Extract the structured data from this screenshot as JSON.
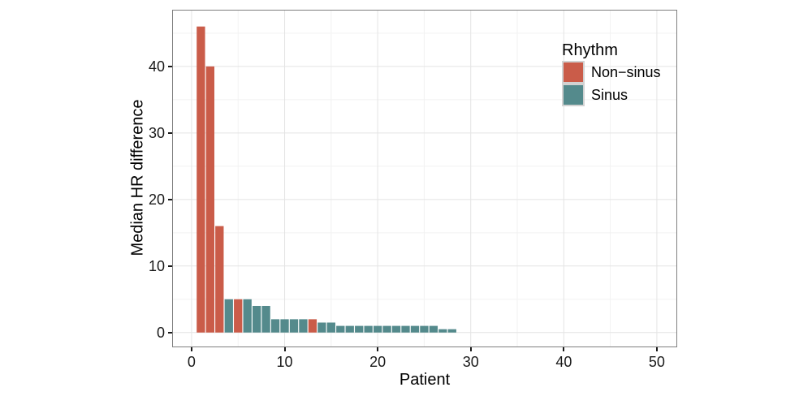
{
  "chart_data": {
    "type": "bar",
    "title": "",
    "xlabel": "Patient",
    "ylabel": "Median HR difference",
    "xlim": [
      -2,
      52.1
    ],
    "ylim": [
      -2.1,
      48.4
    ],
    "x_ticks": [
      0,
      10,
      20,
      30,
      40,
      50
    ],
    "y_ticks": [
      0,
      10,
      20,
      30,
      40
    ],
    "x_minor_ticks": [
      5,
      15,
      25,
      35,
      45
    ],
    "y_minor_ticks": [
      5,
      15,
      25,
      35,
      45
    ],
    "grid": "major and minor, light gray on white panel",
    "legend_position": "inside top-right",
    "bar_width_fraction": 0.9,
    "series": [
      {
        "name": "Non−sinus",
        "color": "#ca5c49"
      },
      {
        "name": "Sinus",
        "color": "#548a8c"
      }
    ],
    "bars": [
      {
        "patient": 1,
        "value": 46,
        "rhythm": "Non−sinus"
      },
      {
        "patient": 2,
        "value": 40,
        "rhythm": "Non−sinus"
      },
      {
        "patient": 3,
        "value": 16,
        "rhythm": "Non−sinus"
      },
      {
        "patient": 4,
        "value": 5,
        "rhythm": "Sinus"
      },
      {
        "patient": 5,
        "value": 5,
        "rhythm": "Non−sinus"
      },
      {
        "patient": 6,
        "value": 5,
        "rhythm": "Sinus"
      },
      {
        "patient": 7,
        "value": 4,
        "rhythm": "Sinus"
      },
      {
        "patient": 8,
        "value": 4,
        "rhythm": "Sinus"
      },
      {
        "patient": 9,
        "value": 2,
        "rhythm": "Sinus"
      },
      {
        "patient": 10,
        "value": 2,
        "rhythm": "Sinus"
      },
      {
        "patient": 11,
        "value": 2,
        "rhythm": "Sinus"
      },
      {
        "patient": 12,
        "value": 2,
        "rhythm": "Sinus"
      },
      {
        "patient": 13,
        "value": 2,
        "rhythm": "Non−sinus"
      },
      {
        "patient": 14,
        "value": 1.5,
        "rhythm": "Sinus"
      },
      {
        "patient": 15,
        "value": 1.5,
        "rhythm": "Sinus"
      },
      {
        "patient": 16,
        "value": 1,
        "rhythm": "Sinus"
      },
      {
        "patient": 17,
        "value": 1,
        "rhythm": "Sinus"
      },
      {
        "patient": 18,
        "value": 1,
        "rhythm": "Sinus"
      },
      {
        "patient": 19,
        "value": 1,
        "rhythm": "Sinus"
      },
      {
        "patient": 20,
        "value": 1,
        "rhythm": "Sinus"
      },
      {
        "patient": 21,
        "value": 1,
        "rhythm": "Sinus"
      },
      {
        "patient": 22,
        "value": 1,
        "rhythm": "Sinus"
      },
      {
        "patient": 23,
        "value": 1,
        "rhythm": "Sinus"
      },
      {
        "patient": 24,
        "value": 1,
        "rhythm": "Sinus"
      },
      {
        "patient": 25,
        "value": 1,
        "rhythm": "Sinus"
      },
      {
        "patient": 26,
        "value": 1,
        "rhythm": "Sinus"
      },
      {
        "patient": 27,
        "value": 0.5,
        "rhythm": "Sinus"
      },
      {
        "patient": 28,
        "value": 0.5,
        "rhythm": "Sinus"
      }
    ]
  },
  "legend": {
    "title": "Rhythm",
    "items": [
      {
        "label": "Non−sinus",
        "color": "#ca5c49"
      },
      {
        "label": "Sinus",
        "color": "#548a8c"
      }
    ]
  },
  "colors": {
    "non_sinus": "#ca5c49",
    "sinus": "#548a8c",
    "grid_major": "#e4e4e4",
    "grid_minor": "#f2f2f2",
    "panel_border": "#7f7f7f",
    "axis_text": "#1a1a1a"
  }
}
